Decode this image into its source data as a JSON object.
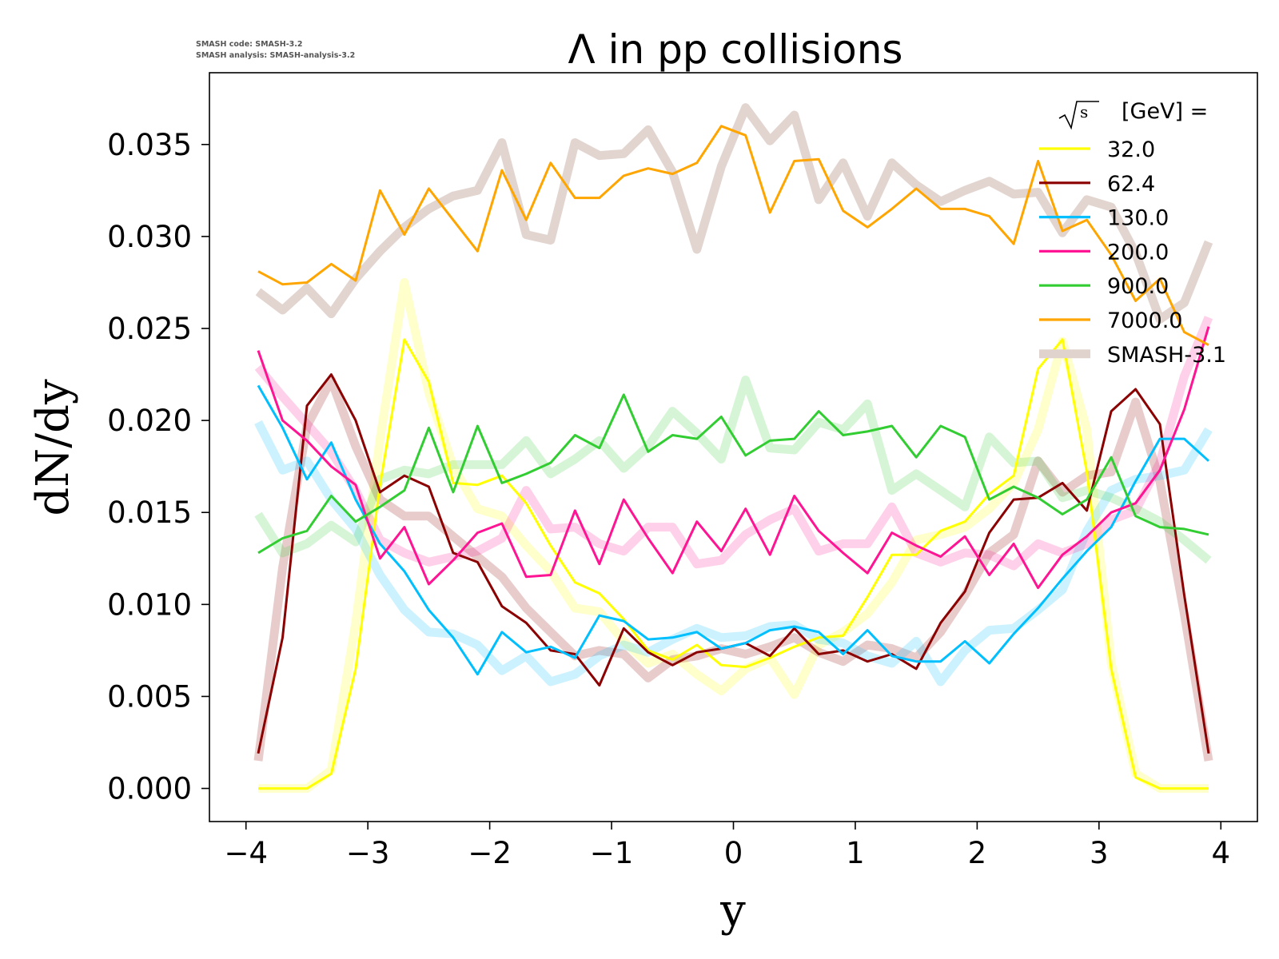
{
  "version_note": {
    "line1": "SMASH code:      SMASH-3.2",
    "line2": "SMASH analysis: SMASH-analysis-3.2"
  },
  "chart_data": {
    "type": "line",
    "title": "Λ in pp collisions",
    "xlabel": "y",
    "ylabel": "dN/dy",
    "xlim": [
      -4.3,
      4.3
    ],
    "ylim": [
      -0.0018,
      0.0389
    ],
    "xticks": [
      -4,
      -3,
      -2,
      -1,
      0,
      1,
      2,
      3,
      4
    ],
    "xtick_labels": [
      "−4",
      "−3",
      "−2",
      "−1",
      "0",
      "1",
      "2",
      "3",
      "4"
    ],
    "yticks": [
      0.0,
      0.005,
      0.01,
      0.015,
      0.02,
      0.025,
      0.03,
      0.035
    ],
    "ytick_labels": [
      "0.000",
      "0.005",
      "0.010",
      "0.015",
      "0.020",
      "0.025",
      "0.030",
      "0.035"
    ],
    "grid": false,
    "legend": {
      "title": "[GeV] =",
      "title_symbol": "√s",
      "placement": "top-right",
      "entries": [
        "32.0",
        "62.4",
        "130.0",
        "200.0",
        "900.0",
        "7000.0",
        "SMASH-3.1"
      ],
      "entry_colors": [
        "#ffff00",
        "#8b0000",
        "#00bfff",
        "#ff1493",
        "#32cd32",
        "#ffa500",
        "#e0d3cd"
      ]
    },
    "x": [
      -3.9,
      -3.7,
      -3.5,
      -3.3,
      -3.1,
      -2.9,
      -2.7,
      -2.5,
      -2.3,
      -2.1,
      -1.9,
      -1.7,
      -1.5,
      -1.3,
      -1.1,
      -0.9,
      -0.7,
      -0.5,
      -0.3,
      -0.1,
      0.1,
      0.3,
      0.5,
      0.7,
      0.9,
      1.1,
      1.3,
      1.5,
      1.7,
      1.9,
      2.1,
      2.3,
      2.5,
      2.7,
      2.9,
      3.1,
      3.3,
      3.5,
      3.7,
      3.9
    ],
    "series": [
      {
        "name": "32.0",
        "color": "#ffff00",
        "values": [
          0.0,
          0.0,
          0.0,
          0.0008,
          0.0065,
          0.0165,
          0.0244,
          0.0221,
          0.0166,
          0.0165,
          0.017,
          0.0155,
          0.0132,
          0.0112,
          0.0106,
          0.0092,
          0.0075,
          0.007,
          0.0078,
          0.0067,
          0.0066,
          0.0071,
          0.0077,
          0.0082,
          0.0083,
          0.0104,
          0.0127,
          0.0127,
          0.014,
          0.0145,
          0.016,
          0.017,
          0.0228,
          0.0244,
          0.0172,
          0.0065,
          0.0006,
          0.0,
          0.0,
          0.0
        ]
      },
      {
        "name": "62.4",
        "color": "#8b0000",
        "values": [
          0.0019,
          0.0082,
          0.0208,
          0.0225,
          0.02,
          0.0161,
          0.017,
          0.0164,
          0.0128,
          0.0123,
          0.0099,
          0.009,
          0.0075,
          0.0073,
          0.0056,
          0.0087,
          0.0074,
          0.0067,
          0.0074,
          0.0076,
          0.0079,
          0.0072,
          0.0087,
          0.0073,
          0.0075,
          0.0069,
          0.0073,
          0.0065,
          0.009,
          0.0107,
          0.0139,
          0.0157,
          0.0158,
          0.0166,
          0.0151,
          0.0205,
          0.0217,
          0.0198,
          0.0105,
          0.0019
        ]
      },
      {
        "name": "130.0",
        "color": "#00bfff",
        "values": [
          0.0219,
          0.0196,
          0.0168,
          0.0188,
          0.0157,
          0.0133,
          0.0118,
          0.0097,
          0.0082,
          0.0062,
          0.0085,
          0.0074,
          0.0077,
          0.0071,
          0.0094,
          0.0091,
          0.0081,
          0.0082,
          0.0085,
          0.0076,
          0.0079,
          0.0086,
          0.0088,
          0.0085,
          0.0073,
          0.0086,
          0.0072,
          0.0069,
          0.0069,
          0.008,
          0.0068,
          0.0084,
          0.0098,
          0.0114,
          0.0129,
          0.0142,
          0.0167,
          0.019,
          0.019,
          0.0178
        ]
      },
      {
        "name": "200.0",
        "color": "#ff1493",
        "values": [
          0.0238,
          0.02,
          0.0189,
          0.0175,
          0.0165,
          0.0125,
          0.0142,
          0.0111,
          0.0124,
          0.0139,
          0.0144,
          0.0115,
          0.0116,
          0.0151,
          0.0122,
          0.0157,
          0.0136,
          0.0117,
          0.0145,
          0.0129,
          0.0152,
          0.0127,
          0.0159,
          0.014,
          0.0128,
          0.0117,
          0.0139,
          0.0132,
          0.0126,
          0.0137,
          0.0116,
          0.0133,
          0.0109,
          0.0127,
          0.0137,
          0.015,
          0.0155,
          0.0173,
          0.0206,
          0.0251
        ]
      },
      {
        "name": "900.0",
        "color": "#32cd32",
        "values": [
          0.0128,
          0.0136,
          0.014,
          0.0159,
          0.0145,
          0.0153,
          0.0162,
          0.0196,
          0.0161,
          0.0197,
          0.0166,
          0.0171,
          0.0177,
          0.0192,
          0.0185,
          0.0214,
          0.0183,
          0.0192,
          0.019,
          0.0202,
          0.0181,
          0.0189,
          0.019,
          0.0205,
          0.0192,
          0.0194,
          0.0197,
          0.018,
          0.0197,
          0.0191,
          0.0157,
          0.0164,
          0.0158,
          0.0149,
          0.0157,
          0.018,
          0.0148,
          0.0142,
          0.0141,
          0.0138
        ]
      },
      {
        "name": "7000.0",
        "color": "#ffa500",
        "values": [
          0.0281,
          0.0274,
          0.0275,
          0.0285,
          0.0276,
          0.0325,
          0.0301,
          0.0326,
          0.0309,
          0.0292,
          0.0336,
          0.0309,
          0.034,
          0.0321,
          0.0321,
          0.0333,
          0.0337,
          0.0334,
          0.034,
          0.036,
          0.0355,
          0.0313,
          0.0341,
          0.0342,
          0.0314,
          0.0305,
          0.0315,
          0.0326,
          0.0315,
          0.0315,
          0.0311,
          0.0296,
          0.0341,
          0.0303,
          0.0309,
          0.029,
          0.0265,
          0.0277,
          0.0248,
          0.0241
        ]
      },
      {
        "name": "SMASH-3.1 (32.0)",
        "color": "#ffff00",
        "reference": true,
        "values": [
          0.0,
          0.0,
          0.0,
          0.001,
          0.009,
          0.019,
          0.0275,
          0.0215,
          0.0175,
          0.0152,
          0.0148,
          0.0132,
          0.0118,
          0.0098,
          0.0096,
          0.008,
          0.0068,
          0.0073,
          0.0062,
          0.0053,
          0.0065,
          0.0071,
          0.0051,
          0.0078,
          0.0085,
          0.0095,
          0.0112,
          0.0135,
          0.0138,
          0.0142,
          0.0152,
          0.0166,
          0.0195,
          0.0243,
          0.0195,
          0.0068,
          0.0008,
          0.0,
          0.0,
          0.0
        ]
      },
      {
        "name": "SMASH-3.1 (62.4)",
        "color": "#8b0000",
        "reference": true,
        "values": [
          0.0015,
          0.012,
          0.0197,
          0.0222,
          0.0186,
          0.0157,
          0.0148,
          0.0148,
          0.0137,
          0.0126,
          0.0115,
          0.0098,
          0.0085,
          0.0072,
          0.0075,
          0.0073,
          0.006,
          0.007,
          0.0072,
          0.0076,
          0.0073,
          0.0077,
          0.0082,
          0.0074,
          0.0069,
          0.0078,
          0.0076,
          0.0071,
          0.0085,
          0.0105,
          0.0128,
          0.0138,
          0.0178,
          0.0161,
          0.017,
          0.0172,
          0.021,
          0.0167,
          0.0095,
          0.0015
        ]
      },
      {
        "name": "SMASH-3.1 (130.0)",
        "color": "#00bfff",
        "reference": true,
        "values": [
          0.0199,
          0.0173,
          0.0178,
          0.0157,
          0.0141,
          0.0116,
          0.0097,
          0.0085,
          0.0084,
          0.0078,
          0.0064,
          0.0072,
          0.0058,
          0.0062,
          0.0072,
          0.0078,
          0.0074,
          0.0081,
          0.0087,
          0.0082,
          0.0083,
          0.0088,
          0.0089,
          0.0081,
          0.0079,
          0.0072,
          0.0068,
          0.008,
          0.0058,
          0.0075,
          0.0086,
          0.0087,
          0.0097,
          0.0108,
          0.014,
          0.0162,
          0.0168,
          0.017,
          0.0173,
          0.0195
        ]
      },
      {
        "name": "SMASH-3.1 (200.0)",
        "color": "#ff1493",
        "reference": true,
        "values": [
          0.0229,
          0.0213,
          0.0198,
          0.0183,
          0.0162,
          0.0135,
          0.0128,
          0.0123,
          0.0126,
          0.0129,
          0.0136,
          0.0162,
          0.0141,
          0.0142,
          0.0133,
          0.0129,
          0.0142,
          0.0142,
          0.0122,
          0.0124,
          0.0138,
          0.0146,
          0.0152,
          0.0129,
          0.0133,
          0.0133,
          0.0153,
          0.0128,
          0.0123,
          0.0128,
          0.0127,
          0.0121,
          0.0133,
          0.0128,
          0.0133,
          0.0146,
          0.0151,
          0.0177,
          0.0224,
          0.0256
        ]
      },
      {
        "name": "SMASH-3.1 (900.0)",
        "color": "#32cd32",
        "reference": true,
        "values": [
          0.0149,
          0.0128,
          0.0133,
          0.0143,
          0.0134,
          0.0168,
          0.0173,
          0.0171,
          0.0176,
          0.0176,
          0.0176,
          0.0189,
          0.0171,
          0.0179,
          0.0189,
          0.0174,
          0.0186,
          0.0205,
          0.0193,
          0.0179,
          0.0222,
          0.0185,
          0.0184,
          0.0199,
          0.0195,
          0.0209,
          0.0162,
          0.0171,
          0.0162,
          0.0153,
          0.0191,
          0.0177,
          0.0178,
          0.0158,
          0.0162,
          0.0158,
          0.0152,
          0.0145,
          0.0135,
          0.0124
        ]
      },
      {
        "name": "SMASH-3.1 (7000.0)",
        "color": "#e0d3cd",
        "reference": true,
        "values": [
          0.027,
          0.026,
          0.0272,
          0.0258,
          0.0277,
          0.0292,
          0.0305,
          0.0315,
          0.0322,
          0.0325,
          0.0351,
          0.0301,
          0.0298,
          0.0351,
          0.0344,
          0.0345,
          0.0358,
          0.0335,
          0.0293,
          0.0338,
          0.037,
          0.0352,
          0.0366,
          0.032,
          0.034,
          0.0311,
          0.034,
          0.0328,
          0.0319,
          0.0325,
          0.033,
          0.0323,
          0.0324,
          0.0302,
          0.032,
          0.0316,
          0.0291,
          0.0255,
          0.0264,
          0.0297
        ]
      }
    ]
  }
}
